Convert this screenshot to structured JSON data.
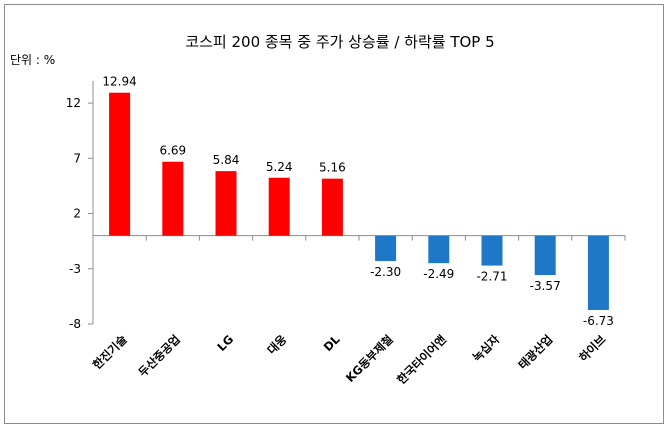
{
  "chart_data": {
    "type": "bar",
    "title": "코스피 200 종목 중  주가 상승률 / 하락률 TOP 5",
    "unit_label": "단위 : %",
    "categories": [
      "한진기술",
      "두산중공업",
      "LG",
      "대웅",
      "DL",
      "KG동부제철",
      "한국타이어앤",
      "녹십자",
      "태광산업",
      "하이브"
    ],
    "values": [
      12.94,
      6.69,
      5.84,
      5.24,
      5.16,
      -2.3,
      -2.49,
      -2.71,
      -3.57,
      -6.73
    ],
    "value_labels": [
      "12.94",
      "6.69",
      "5.84",
      "5.24",
      "5.16",
      "-2.30",
      "-2.49",
      "-2.71",
      "-3.57",
      "-6.73"
    ],
    "yticks": [
      12,
      7,
      2,
      -3,
      -8
    ],
    "ylim": [
      -8,
      14
    ],
    "colors": {
      "positive": "#ff0000",
      "negative": "#1f77c8"
    },
    "xlabel": "",
    "ylabel": ""
  }
}
